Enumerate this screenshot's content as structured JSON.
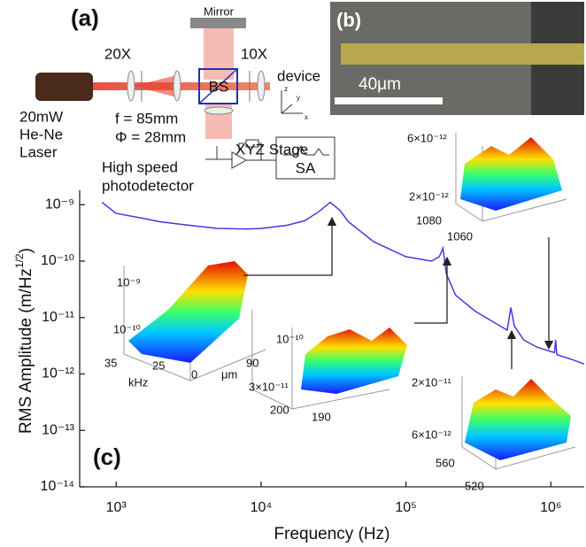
{
  "chart_data": {
    "type": "line",
    "xscale": "log",
    "yscale": "log",
    "xlabel": "Frequency (Hz)",
    "ylabel": {
      "main": "RMS Amplitude (m/Hz",
      "sup": "1/2",
      "end": ")"
    },
    "xlim": [
      560,
      1700000
    ],
    "ylim": [
      1e-14,
      1.8e-09
    ],
    "xticks": [
      {
        "value": 1000,
        "label": "10³"
      },
      {
        "value": 10000,
        "label": "10⁴"
      },
      {
        "value": 100000,
        "label": "10⁵"
      },
      {
        "value": 1000000,
        "label": "10⁶"
      }
    ],
    "yticks": [
      {
        "value": 1e-14,
        "label": "10⁻¹⁴"
      },
      {
        "value": 1e-13,
        "label": "10⁻¹³"
      },
      {
        "value": 1e-12,
        "label": "10⁻¹²"
      },
      {
        "value": 1e-11,
        "label": "10⁻¹¹"
      },
      {
        "value": 1e-10,
        "label": "10⁻¹⁰"
      },
      {
        "value": 1e-09,
        "label": "10⁻⁹"
      }
    ],
    "color": "#5a2fe0",
    "x": [
      800,
      1000,
      1500,
      2000,
      3000,
      5000,
      8000,
      10000,
      15000,
      20000,
      25000,
      30000,
      35000,
      40000,
      60000,
      100000,
      150000,
      170000,
      180000,
      190000,
      220000,
      300000,
      450000,
      500000,
      530000,
      560000,
      650000,
      800000,
      1000000,
      1060000,
      1080000,
      1100000,
      1400000,
      1700000
    ],
    "values": [
      1.1e-09,
      7e-10,
      5.8e-10,
      5e-10,
      4.4e-10,
      3.8e-10,
      3.7e-10,
      3.8e-10,
      4.3e-10,
      5.2e-10,
      7.5e-10,
      1.1e-09,
      8e-10,
      5e-10,
      2.2e-10,
      1.2e-10,
      1e-10,
      1.2e-10,
      1.7e-10,
      6e-11,
      2.5e-11,
      1.3e-11,
      7e-12,
      6e-12,
      1.5e-11,
      7e-12,
      4e-12,
      3e-12,
      2.5e-12,
      2.4e-12,
      4e-12,
      2.2e-12,
      1.8e-12,
      1.5e-12
    ],
    "panel_labels": [
      "(a)",
      "(b)",
      "(c)"
    ],
    "setup_labels": [
      "Mirror",
      "20X",
      "10X",
      "BS",
      "device",
      "20mW",
      "He-Ne",
      "Laser",
      "f = 85mm",
      "Φ = 28mm",
      "XYZ Stage",
      "SA",
      "High speed",
      "photodetector",
      "z",
      "y",
      "x"
    ],
    "scale_bar": "40μm",
    "insets": [
      {
        "labels": [
          "10⁻⁹",
          "10⁻¹⁰",
          "35",
          "25",
          "kHz",
          "0",
          "μm",
          "90"
        ]
      },
      {
        "labels": [
          "10⁻¹⁰",
          "3×10⁻¹¹",
          "200",
          "190"
        ]
      },
      {
        "labels": [
          "6×10⁻¹²",
          "2×10⁻¹²",
          "1080",
          "1060"
        ]
      },
      {
        "labels": [
          "2×10⁻¹¹",
          "6×10⁻¹²",
          "560",
          "520"
        ]
      }
    ]
  }
}
